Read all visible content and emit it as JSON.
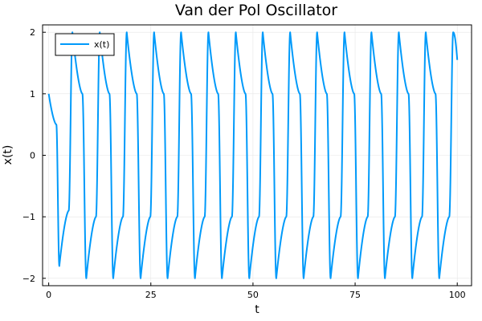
{
  "chart_data": {
    "type": "line",
    "title": "Van der Pol Oscillator",
    "xlabel": "t",
    "ylabel": "x(t)",
    "xlim": [
      0,
      100
    ],
    "ylim": [
      -2,
      2
    ],
    "x_ticks": [
      0,
      25,
      50,
      75,
      100
    ],
    "y_ticks": [
      -2,
      -1,
      0,
      1,
      2
    ],
    "x_tick_labels": [
      "0",
      "25",
      "50",
      "75",
      "100"
    ],
    "y_tick_labels": [
      "−2",
      "−1",
      "0",
      "1",
      "2"
    ],
    "grid": true,
    "legend_position": "top-left",
    "series": [
      {
        "name": "x(t)",
        "color": "#009AFA",
        "start_value": 1.0,
        "first_min": -1.8,
        "period": 6.66,
        "amplitude": 2.0,
        "peak_times": [
          5.8,
          12.5,
          19.1,
          25.8,
          32.4,
          39.1,
          45.8,
          52.4,
          59.1,
          65.7,
          72.4,
          79.0,
          85.7,
          92.3,
          99.0
        ],
        "trough_times": [
          2.6,
          9.2,
          15.8,
          22.5,
          29.1,
          35.8,
          42.4,
          49.1,
          55.7,
          62.4,
          69.0,
          75.7,
          82.3,
          89.0,
          95.6
        ],
        "end_value": 1.55,
        "end_time": 100
      }
    ]
  }
}
